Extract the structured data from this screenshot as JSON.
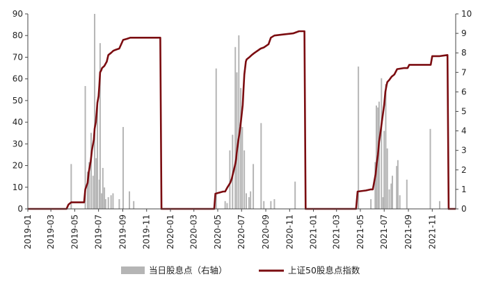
{
  "chart_data": {
    "type": "bar+line",
    "title": "",
    "xlabel": "",
    "ylabel": "",
    "x_range": [
      "2019-01-01",
      "2021-12-31"
    ],
    "x_ticks": [
      "2019-01",
      "2019-03",
      "2019-05",
      "2019-07",
      "2019-09",
      "2019-11",
      "2020-01",
      "2020-03",
      "2020-05",
      "2020-07",
      "2020-09",
      "2020-11",
      "2021-01",
      "2021-03",
      "2021-05",
      "2021-07",
      "2021-09",
      "2021-11"
    ],
    "y_left": {
      "min": 0,
      "max": 90,
      "ticks": [
        0,
        10,
        20,
        30,
        40,
        50,
        60,
        70,
        80,
        90
      ]
    },
    "y_right": {
      "min": 0,
      "max": 10,
      "ticks": [
        0,
        1,
        2,
        3,
        4,
        5,
        6,
        7,
        8,
        9,
        10
      ]
    },
    "legend_position": "bottom",
    "grid": false,
    "colors": {
      "bars": "#b5b5b5",
      "line": "#7b0c10",
      "axis": "#444444"
    },
    "series": [
      {
        "name": "当日股息点（右轴）",
        "kind": "bar",
        "axis": "right",
        "points": [
          {
            "x": "2019-04-22",
            "y": 2.3
          },
          {
            "x": "2019-05-28",
            "y": 6.3
          },
          {
            "x": "2019-06-03",
            "y": 1.9
          },
          {
            "x": "2019-06-07",
            "y": 2.4
          },
          {
            "x": "2019-06-12",
            "y": 3.9
          },
          {
            "x": "2019-06-17",
            "y": 1.7
          },
          {
            "x": "2019-06-21",
            "y": 10.0
          },
          {
            "x": "2019-06-25",
            "y": 2.6
          },
          {
            "x": "2019-06-28",
            "y": 5.5
          },
          {
            "x": "2019-07-03",
            "y": 1.5
          },
          {
            "x": "2019-07-05",
            "y": 8.5
          },
          {
            "x": "2019-07-09",
            "y": 0.8
          },
          {
            "x": "2019-07-12",
            "y": 2.1
          },
          {
            "x": "2019-07-16",
            "y": 1.1
          },
          {
            "x": "2019-07-19",
            "y": 0.5
          },
          {
            "x": "2019-07-26",
            "y": 0.6
          },
          {
            "x": "2019-08-02",
            "y": 0.7
          },
          {
            "x": "2019-08-07",
            "y": 0.8
          },
          {
            "x": "2019-08-23",
            "y": 0.5
          },
          {
            "x": "2019-09-02",
            "y": 4.2
          },
          {
            "x": "2019-09-18",
            "y": 0.9
          },
          {
            "x": "2019-09-29",
            "y": 0.4
          },
          {
            "x": "2020-04-27",
            "y": 7.2
          },
          {
            "x": "2020-05-20",
            "y": 0.4
          },
          {
            "x": "2020-05-25",
            "y": 0.3
          },
          {
            "x": "2020-06-01",
            "y": 3.0
          },
          {
            "x": "2020-06-08",
            "y": 3.8
          },
          {
            "x": "2020-06-15",
            "y": 8.3
          },
          {
            "x": "2020-06-19",
            "y": 7.0
          },
          {
            "x": "2020-06-24",
            "y": 8.9
          },
          {
            "x": "2020-06-29",
            "y": 6.2
          },
          {
            "x": "2020-07-03",
            "y": 4.2
          },
          {
            "x": "2020-07-08",
            "y": 3.0
          },
          {
            "x": "2020-07-13",
            "y": 0.8
          },
          {
            "x": "2020-07-20",
            "y": 0.6
          },
          {
            "x": "2020-07-24",
            "y": 0.9
          },
          {
            "x": "2020-07-31",
            "y": 2.3
          },
          {
            "x": "2020-08-20",
            "y": 4.4
          },
          {
            "x": "2020-08-27",
            "y": 0.4
          },
          {
            "x": "2020-09-14",
            "y": 0.4
          },
          {
            "x": "2020-09-23",
            "y": 0.5
          },
          {
            "x": "2020-11-15",
            "y": 1.4
          },
          {
            "x": "2021-04-26",
            "y": 7.3
          },
          {
            "x": "2021-05-28",
            "y": 0.5
          },
          {
            "x": "2021-06-08",
            "y": 2.4
          },
          {
            "x": "2021-06-11",
            "y": 5.3
          },
          {
            "x": "2021-06-15",
            "y": 5.2
          },
          {
            "x": "2021-06-18",
            "y": 5.5
          },
          {
            "x": "2021-06-24",
            "y": 6.7
          },
          {
            "x": "2021-06-28",
            "y": 0.6
          },
          {
            "x": "2021-07-01",
            "y": 4.0
          },
          {
            "x": "2021-07-05",
            "y": 6.4
          },
          {
            "x": "2021-07-09",
            "y": 3.1
          },
          {
            "x": "2021-07-14",
            "y": 1.0
          },
          {
            "x": "2021-07-19",
            "y": 1.3
          },
          {
            "x": "2021-07-22",
            "y": 1.7
          },
          {
            "x": "2021-08-02",
            "y": 2.2
          },
          {
            "x": "2021-08-05",
            "y": 2.5
          },
          {
            "x": "2021-08-10",
            "y": 0.7
          },
          {
            "x": "2021-08-28",
            "y": 1.5
          },
          {
            "x": "2021-10-27",
            "y": 4.1
          },
          {
            "x": "2021-11-20",
            "y": 0.4
          }
        ]
      },
      {
        "name": "上证50股息点指数",
        "kind": "line",
        "axis": "left",
        "points": [
          {
            "x": "2019-01-02",
            "y": 0
          },
          {
            "x": "2019-04-10",
            "y": 0
          },
          {
            "x": "2019-04-15",
            "y": 2
          },
          {
            "x": "2019-04-22",
            "y": 3
          },
          {
            "x": "2019-05-25",
            "y": 3
          },
          {
            "x": "2019-05-28",
            "y": 9
          },
          {
            "x": "2019-06-03",
            "y": 12
          },
          {
            "x": "2019-06-06",
            "y": 17
          },
          {
            "x": "2019-06-11",
            "y": 22
          },
          {
            "x": "2019-06-14",
            "y": 27
          },
          {
            "x": "2019-06-19",
            "y": 32
          },
          {
            "x": "2019-06-21",
            "y": 37
          },
          {
            "x": "2019-06-24",
            "y": 40
          },
          {
            "x": "2019-06-26",
            "y": 44
          },
          {
            "x": "2019-06-28",
            "y": 49
          },
          {
            "x": "2019-07-01",
            "y": 52
          },
          {
            "x": "2019-07-03",
            "y": 57
          },
          {
            "x": "2019-07-05",
            "y": 63
          },
          {
            "x": "2019-07-08",
            "y": 64
          },
          {
            "x": "2019-07-10",
            "y": 65
          },
          {
            "x": "2019-07-16",
            "y": 66
          },
          {
            "x": "2019-07-19",
            "y": 67
          },
          {
            "x": "2019-07-22",
            "y": 68
          },
          {
            "x": "2019-07-26",
            "y": 71
          },
          {
            "x": "2019-08-02",
            "y": 72
          },
          {
            "x": "2019-08-08",
            "y": 73
          },
          {
            "x": "2019-08-15",
            "y": 73.5
          },
          {
            "x": "2019-08-23",
            "y": 74
          },
          {
            "x": "2019-09-02",
            "y": 78
          },
          {
            "x": "2019-09-12",
            "y": 78.5
          },
          {
            "x": "2019-09-20",
            "y": 79
          },
          {
            "x": "2019-10-01",
            "y": 79
          },
          {
            "x": "2019-12-06",
            "y": 79
          },
          {
            "x": "2019-12-09",
            "y": 0
          },
          {
            "x": "2020-04-22",
            "y": 0
          },
          {
            "x": "2020-04-25",
            "y": 7
          },
          {
            "x": "2020-05-15",
            "y": 8
          },
          {
            "x": "2020-05-20",
            "y": 8
          },
          {
            "x": "2020-05-26",
            "y": 10
          },
          {
            "x": "2020-06-02",
            "y": 12
          },
          {
            "x": "2020-06-06",
            "y": 14
          },
          {
            "x": "2020-06-10",
            "y": 17
          },
          {
            "x": "2020-06-14",
            "y": 20
          },
          {
            "x": "2020-06-17",
            "y": 23
          },
          {
            "x": "2020-06-20",
            "y": 28
          },
          {
            "x": "2020-06-24",
            "y": 33
          },
          {
            "x": "2020-06-28",
            "y": 38
          },
          {
            "x": "2020-07-01",
            "y": 43
          },
          {
            "x": "2020-07-04",
            "y": 48
          },
          {
            "x": "2020-07-06",
            "y": 55
          },
          {
            "x": "2020-07-08",
            "y": 62
          },
          {
            "x": "2020-07-12",
            "y": 68
          },
          {
            "x": "2020-07-14",
            "y": 69
          },
          {
            "x": "2020-07-21",
            "y": 70
          },
          {
            "x": "2020-07-27",
            "y": 71
          },
          {
            "x": "2020-08-03",
            "y": 72
          },
          {
            "x": "2020-08-19",
            "y": 74
          },
          {
            "x": "2020-08-27",
            "y": 74.5
          },
          {
            "x": "2020-09-08",
            "y": 76
          },
          {
            "x": "2020-09-14",
            "y": 79
          },
          {
            "x": "2020-09-23",
            "y": 80
          },
          {
            "x": "2020-10-15",
            "y": 80.5
          },
          {
            "x": "2020-11-10",
            "y": 81
          },
          {
            "x": "2020-11-25",
            "y": 82
          },
          {
            "x": "2020-12-09",
            "y": 82
          },
          {
            "x": "2020-12-12",
            "y": 0
          },
          {
            "x": "2021-04-20",
            "y": 0
          },
          {
            "x": "2021-04-24",
            "y": 8
          },
          {
            "x": "2021-05-15",
            "y": 8.5
          },
          {
            "x": "2021-05-28",
            "y": 9
          },
          {
            "x": "2021-06-02",
            "y": 9
          },
          {
            "x": "2021-06-05",
            "y": 12
          },
          {
            "x": "2021-06-09",
            "y": 16
          },
          {
            "x": "2021-06-12",
            "y": 21
          },
          {
            "x": "2021-06-15",
            "y": 25
          },
          {
            "x": "2021-06-18",
            "y": 31
          },
          {
            "x": "2021-06-22",
            "y": 36
          },
          {
            "x": "2021-06-25",
            "y": 40
          },
          {
            "x": "2021-06-28",
            "y": 44
          },
          {
            "x": "2021-07-01",
            "y": 48
          },
          {
            "x": "2021-07-04",
            "y": 54
          },
          {
            "x": "2021-07-07",
            "y": 57
          },
          {
            "x": "2021-07-09",
            "y": 58.5
          },
          {
            "x": "2021-07-14",
            "y": 59.5
          },
          {
            "x": "2021-07-20",
            "y": 61
          },
          {
            "x": "2021-07-27",
            "y": 62
          },
          {
            "x": "2021-08-03",
            "y": 64.5
          },
          {
            "x": "2021-08-20",
            "y": 65
          },
          {
            "x": "2021-08-30",
            "y": 65
          },
          {
            "x": "2021-09-03",
            "y": 66.5
          },
          {
            "x": "2021-10-28",
            "y": 66.5
          },
          {
            "x": "2021-11-01",
            "y": 70.5
          },
          {
            "x": "2021-11-20",
            "y": 70.5
          },
          {
            "x": "2021-12-10",
            "y": 71
          },
          {
            "x": "2021-12-13",
            "y": 0
          },
          {
            "x": "2021-12-31",
            "y": 0
          }
        ]
      }
    ]
  }
}
